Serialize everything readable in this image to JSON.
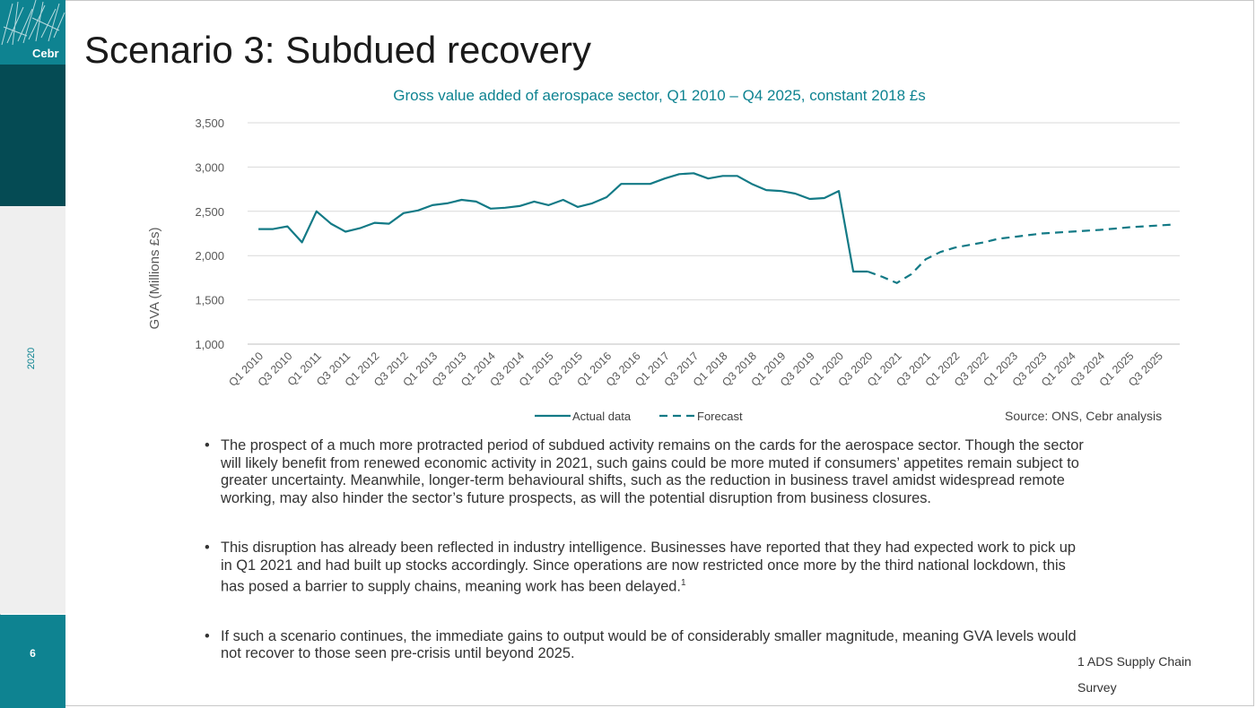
{
  "slide": {
    "title": "Scenario 3: Subdued recovery",
    "logo_text": "Cebr",
    "year": "2020",
    "page_number": "6",
    "source": "Source: ONS, Cebr analysis",
    "footnote": "1 ADS Supply Chain Survey",
    "bullets": [
      {
        "text": "The prospect of a much more protracted period of subdued activity remains on the cards for the aerospace sector. Though the sector will likely benefit from renewed economic activity in 2021, such gains could be more muted if consumers’ appetites remain subject to greater uncertainty. Meanwhile, longer-term behavioural shifts, such as the reduction in business travel amidst widespread remote working, may also hinder the sector’s future prospects, as will the potential disruption from business closures.",
        "sup": ""
      },
      {
        "text": "This disruption has already been reflected in industry intelligence. Businesses have reported that they had expected work to pick up in Q1 2021 and had built up stocks accordingly. Since operations are now restricted once more by the third national lockdown, this has posed a barrier to supply chains, meaning work has been delayed.",
        "sup": "1"
      },
      {
        "text": "If such a scenario continues, the immediate gains to output would be of considerably smaller magnitude, meaning GVA levels would not recover to those seen pre-crisis until beyond 2025.",
        "sup": ""
      }
    ]
  },
  "colors": {
    "accent": "#0e8391",
    "dark": "#054b54",
    "line": "#137a86"
  },
  "chart_data": {
    "type": "line",
    "title": "Gross value added of aerospace sector, Q1 2010 – Q4 2025, constant 2018 £s",
    "ylabel": "GVA (Millions £s)",
    "xlabel": "",
    "ylim": [
      1000,
      3500
    ],
    "yticks": [
      1000,
      1500,
      2000,
      2500,
      3000,
      3500
    ],
    "ytick_labels": [
      "1,000",
      "1,500",
      "2,000",
      "2,500",
      "3,000",
      "3,500"
    ],
    "grid": true,
    "legend_position": "bottom-center",
    "x_labels": [
      "Q1 2010",
      "Q3 2010",
      "Q1 2011",
      "Q3 2011",
      "Q1 2012",
      "Q3 2012",
      "Q1 2013",
      "Q3 2013",
      "Q1 2014",
      "Q3 2014",
      "Q1 2015",
      "Q3 2015",
      "Q1 2016",
      "Q3 2016",
      "Q1 2017",
      "Q3 2017",
      "Q1 2018",
      "Q3 2018",
      "Q1 2019",
      "Q3 2019",
      "Q1 2020",
      "Q3 2020",
      "Q1 2021",
      "Q3 2021",
      "Q1 2022",
      "Q3 2022",
      "Q1 2023",
      "Q3 2023",
      "Q1 2024",
      "Q3 2024",
      "Q1 2025",
      "Q3 2025"
    ],
    "series": [
      {
        "name": "Actual data",
        "style": "solid",
        "start_index": 0,
        "values": [
          2300,
          2300,
          2330,
          2150,
          2500,
          2360,
          2270,
          2310,
          2370,
          2360,
          2480,
          2510,
          2570,
          2590,
          2630,
          2610,
          2530,
          2540,
          2560,
          2610,
          2570,
          2630,
          2550,
          2590,
          2660,
          2810,
          2810,
          2810,
          2870,
          2920,
          2930,
          2870,
          2900,
          2900,
          2810,
          2740,
          2730,
          2700,
          2640,
          2650,
          2730,
          1820,
          1820
        ]
      },
      {
        "name": "Forecast",
        "style": "dashed",
        "start_index": 42,
        "values": [
          1820,
          1760,
          1690,
          1790,
          1960,
          2040,
          2090,
          2120,
          2150,
          2190,
          2210,
          2230,
          2250,
          2260,
          2270,
          2280,
          2290,
          2305,
          2320,
          2330,
          2340,
          2350
        ]
      }
    ]
  }
}
